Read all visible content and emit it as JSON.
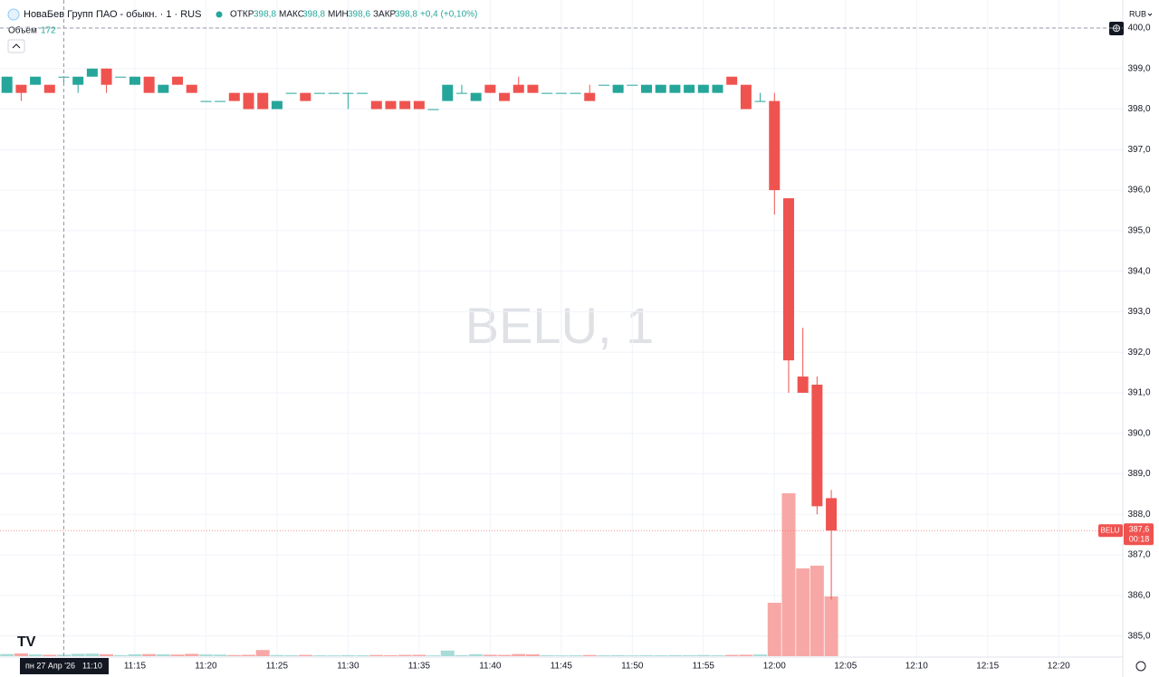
{
  "chart_data": {
    "type": "candlestick",
    "title": "НоваБев Групп ПАО - обыкн. · 1 · RUS",
    "legend": {
      "open_label": "ОТКР",
      "open": "398,8",
      "high_label": "МАКС",
      "high": "398,8",
      "low_label": "МИН",
      "low": "398,6",
      "close_label": "ЗАКР",
      "close": "398,8",
      "change": "+0,4 (+0,10%)"
    },
    "volume_label": "Объём",
    "volume_value": "172",
    "currency": "RUB",
    "watermark": "BELU, 1",
    "symbol_label": "BELU",
    "last_price_label": "387,6",
    "countdown": "00:18",
    "crosshair_date": "пн 27 Апр '26",
    "crosshair_time": "11:10",
    "up_color": "#26a69a",
    "down_color": "#ef5350",
    "up_volume_color": "#a8dcd6",
    "down_volume_color": "#f7a8a6",
    "x": [
      "11:06",
      "11:07",
      "11:08",
      "11:09",
      "11:10",
      "11:11",
      "11:12",
      "11:13",
      "11:14",
      "11:15",
      "11:16",
      "11:17",
      "11:18",
      "11:19",
      "11:20",
      "11:21",
      "11:22",
      "11:23",
      "11:24",
      "11:25",
      "11:26",
      "11:27",
      "11:28",
      "11:29",
      "11:30",
      "11:31",
      "11:32",
      "11:33",
      "11:34",
      "11:35",
      "11:36",
      "11:37",
      "11:38",
      "11:39",
      "11:40",
      "11:41",
      "11:42",
      "11:43",
      "11:44",
      "11:45",
      "11:46",
      "11:47",
      "11:48",
      "11:49",
      "11:50",
      "11:51",
      "11:52",
      "11:53",
      "11:54",
      "11:55",
      "11:56",
      "11:57",
      "11:58",
      "11:59",
      "12:00",
      "12:01",
      "12:02",
      "12:03",
      "12:04"
    ],
    "open": [
      398.4,
      398.6,
      398.6,
      398.6,
      398.8,
      398.6,
      398.8,
      399.0,
      398.8,
      398.6,
      398.8,
      398.4,
      398.8,
      398.6,
      398.2,
      398.2,
      398.4,
      398.4,
      398.4,
      398.0,
      398.4,
      398.4,
      398.4,
      398.4,
      398.4,
      398.4,
      398.2,
      398.2,
      398.2,
      398.2,
      398.0,
      398.2,
      398.4,
      398.2,
      398.6,
      398.4,
      398.6,
      398.6,
      398.4,
      398.4,
      398.4,
      398.4,
      398.6,
      398.4,
      398.6,
      398.4,
      398.4,
      398.4,
      398.4,
      398.4,
      398.4,
      398.8,
      398.6,
      398.2,
      398.2,
      395.8,
      391.4,
      391.2,
      388.4
    ],
    "high": [
      398.8,
      398.6,
      398.8,
      398.6,
      398.8,
      398.8,
      399.0,
      399.0,
      398.8,
      398.8,
      398.8,
      398.6,
      398.8,
      398.6,
      398.2,
      398.2,
      398.4,
      398.4,
      398.4,
      398.2,
      398.4,
      398.4,
      398.4,
      398.4,
      398.4,
      398.4,
      398.2,
      398.2,
      398.2,
      398.2,
      398.0,
      398.6,
      398.6,
      398.4,
      398.6,
      398.4,
      398.8,
      398.6,
      398.4,
      398.4,
      398.4,
      398.6,
      398.6,
      398.6,
      398.6,
      398.6,
      398.6,
      398.6,
      398.6,
      398.6,
      398.6,
      398.8,
      398.6,
      398.4,
      398.4,
      395.8,
      392.6,
      391.4,
      388.6
    ],
    "low": [
      398.4,
      398.2,
      398.6,
      398.4,
      398.6,
      398.4,
      398.8,
      398.4,
      398.8,
      398.6,
      398.4,
      398.4,
      398.6,
      398.4,
      398.2,
      398.2,
      398.2,
      398.0,
      398.0,
      398.0,
      398.4,
      398.2,
      398.4,
      398.4,
      398.0,
      398.4,
      398.0,
      398.0,
      398.0,
      398.0,
      398.0,
      398.2,
      398.4,
      398.2,
      398.4,
      398.2,
      398.4,
      398.4,
      398.4,
      398.4,
      398.4,
      398.2,
      398.6,
      398.4,
      398.6,
      398.4,
      398.4,
      398.4,
      398.4,
      398.4,
      398.4,
      398.6,
      398.0,
      398.2,
      395.4,
      391.0,
      391.0,
      388.0,
      385.9
    ],
    "close": [
      398.8,
      398.4,
      398.8,
      398.4,
      398.8,
      398.8,
      399.0,
      398.6,
      398.8,
      398.8,
      398.4,
      398.6,
      398.6,
      398.4,
      398.2,
      398.2,
      398.2,
      398.0,
      398.0,
      398.2,
      398.4,
      398.2,
      398.4,
      398.4,
      398.4,
      398.4,
      398.0,
      398.0,
      398.0,
      398.0,
      398.0,
      398.6,
      398.4,
      398.4,
      398.4,
      398.2,
      398.4,
      398.4,
      398.4,
      398.4,
      398.4,
      398.2,
      398.6,
      398.6,
      398.6,
      398.6,
      398.6,
      398.6,
      398.6,
      398.6,
      398.6,
      398.6,
      398.0,
      398.2,
      396.0,
      391.8,
      391.0,
      388.2,
      387.6
    ],
    "volume": [
      240,
      310,
      190,
      150,
      172,
      260,
      280,
      220,
      120,
      210,
      230,
      200,
      180,
      260,
      190,
      170,
      120,
      150,
      680,
      130,
      110,
      140,
      100,
      90,
      120,
      100,
      130,
      110,
      140,
      150,
      90,
      620,
      120,
      220,
      160,
      140,
      240,
      200,
      110,
      90,
      100,
      130,
      100,
      120,
      90,
      110,
      100,
      120,
      110,
      130,
      100,
      140,
      160,
      190,
      5900,
      18000,
      9700,
      10000,
      6600
    ],
    "xlim": [
      "11:05",
      "12:24"
    ],
    "xticks": [
      "11:15",
      "11:20",
      "11:25",
      "11:30",
      "11:35",
      "11:40",
      "11:45",
      "11:50",
      "11:55",
      "12:00",
      "12:05",
      "12:10",
      "12:15",
      "12:20"
    ],
    "ylim": [
      384.5,
      400.0
    ],
    "yticks": [
      {
        "value": 385,
        "label": "385,0"
      },
      {
        "value": 386,
        "label": "386,0"
      },
      {
        "value": 387,
        "label": "387,0"
      },
      {
        "value": 388,
        "label": "388,0"
      },
      {
        "value": 389,
        "label": "389,0"
      },
      {
        "value": 390,
        "label": "390,0"
      },
      {
        "value": 391,
        "label": "391,0"
      },
      {
        "value": 392,
        "label": "392,0"
      },
      {
        "value": 393,
        "label": "393,0"
      },
      {
        "value": 394,
        "label": "394,0"
      },
      {
        "value": 395,
        "label": "395,0"
      },
      {
        "value": 396,
        "label": "396,0"
      },
      {
        "value": 397,
        "label": "397,0"
      },
      {
        "value": 398,
        "label": "398,0"
      },
      {
        "value": 399,
        "label": "399,0"
      },
      {
        "value": 400,
        "label": "400,0"
      }
    ],
    "grid": true
  }
}
